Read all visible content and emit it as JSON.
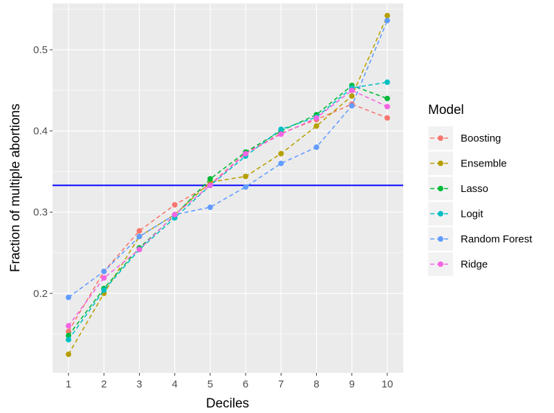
{
  "chart_data": {
    "type": "line",
    "xlabel": "Deciles",
    "ylabel": "Fraction of multiple abortions",
    "x": [
      1,
      2,
      3,
      4,
      5,
      6,
      7,
      8,
      9,
      10
    ],
    "xlim": [
      0.55,
      10.45
    ],
    "ylim": [
      0.102,
      0.557
    ],
    "x_ticks": [
      1,
      2,
      3,
      4,
      5,
      6,
      7,
      8,
      9,
      10
    ],
    "y_ticks": [
      0.2,
      0.3,
      0.4,
      0.5
    ],
    "y_tick_labels": [
      "0.2",
      "0.3",
      "0.4",
      "0.5"
    ],
    "grid": true,
    "legend_position": "right",
    "legend_title": "Model",
    "reference_line": {
      "y": 0.333,
      "color": "#0000ff"
    },
    "series": [
      {
        "name": "Boosting",
        "color": "#F8766D",
        "values": [
          0.153,
          0.227,
          0.277,
          0.309,
          0.334,
          0.373,
          0.397,
          0.414,
          0.433,
          0.416
        ]
      },
      {
        "name": "Ensemble",
        "color": "#B79F00",
        "values": [
          0.125,
          0.2,
          0.27,
          0.297,
          0.337,
          0.344,
          0.372,
          0.406,
          0.443,
          0.542
        ]
      },
      {
        "name": "Lasso",
        "color": "#00BA38",
        "values": [
          0.148,
          0.206,
          0.256,
          0.296,
          0.341,
          0.374,
          0.4,
          0.42,
          0.456,
          0.44
        ]
      },
      {
        "name": "Logit",
        "color": "#00BFC4",
        "values": [
          0.143,
          0.204,
          0.254,
          0.293,
          0.333,
          0.369,
          0.402,
          0.417,
          0.453,
          0.46
        ]
      },
      {
        "name": "Random Forest",
        "color": "#619CFF",
        "values": [
          0.195,
          0.227,
          0.27,
          0.297,
          0.306,
          0.331,
          0.36,
          0.38,
          0.431,
          0.536
        ]
      },
      {
        "name": "Ridge",
        "color": "#F564E3",
        "values": [
          0.16,
          0.219,
          0.254,
          0.297,
          0.333,
          0.372,
          0.396,
          0.416,
          0.45,
          0.43
        ]
      }
    ]
  }
}
